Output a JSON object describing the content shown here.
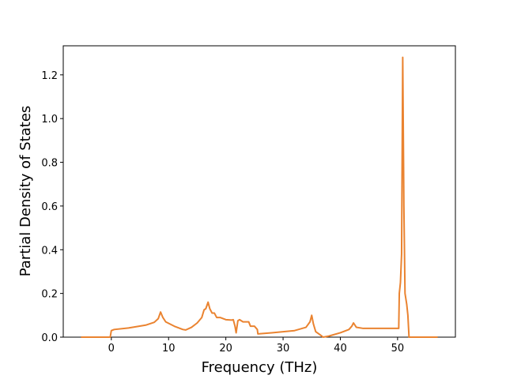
{
  "chart_data": {
    "type": "line",
    "xlabel": "Frequency (THz)",
    "ylabel": "Partial Density of States",
    "x": [
      -5.3,
      -0.2,
      0,
      0.5,
      3,
      6,
      7.5,
      8.2,
      8.6,
      9,
      9.5,
      11,
      12.5,
      13,
      14,
      15,
      15.8,
      16.2,
      16.5,
      16.9,
      17.2,
      17.6,
      18,
      18.4,
      19,
      20,
      21,
      21.3,
      21.6,
      21.8,
      22.1,
      22.4,
      23,
      24,
      24.3,
      25,
      25.5,
      25.6,
      28,
      32,
      34,
      34.7,
      35,
      35.3,
      35.7,
      36.5,
      37,
      38,
      40,
      41.5,
      42,
      42.3,
      42.8,
      44,
      50,
      50.2,
      50.3,
      50.5,
      50.7,
      50.9,
      51.1,
      51.3,
      51.6,
      51.8,
      52,
      57
    ],
    "series": [
      {
        "color": "#ea8330",
        "values": [
          0,
          0,
          0.03,
          0.035,
          0.042,
          0.055,
          0.068,
          0.085,
          0.115,
          0.09,
          0.07,
          0.05,
          0.035,
          0.033,
          0.045,
          0.065,
          0.09,
          0.125,
          0.13,
          0.16,
          0.13,
          0.11,
          0.11,
          0.09,
          0.09,
          0.08,
          0.078,
          0.08,
          0.05,
          0.02,
          0.075,
          0.08,
          0.07,
          0.07,
          0.05,
          0.05,
          0.035,
          0.015,
          0.02,
          0.03,
          0.045,
          0.07,
          0.1,
          0.06,
          0.025,
          0.01,
          0,
          0.005,
          0.02,
          0.035,
          0.05,
          0.065,
          0.045,
          0.04,
          0.04,
          0.04,
          0.2,
          0.25,
          0.38,
          1.28,
          0.6,
          0.2,
          0.15,
          0.1,
          0,
          0
        ]
      }
    ],
    "xlim": [
      -8.4,
      60.1
    ],
    "ylim": [
      0,
      1.333
    ],
    "xticks": [
      0,
      10,
      20,
      30,
      40,
      50
    ],
    "yticks": [
      {
        "value": 0,
        "label": "0.0"
      },
      0.2,
      0.4,
      0.6,
      0.8,
      {
        "value": 1,
        "label": "1.0"
      },
      1.2
    ]
  }
}
